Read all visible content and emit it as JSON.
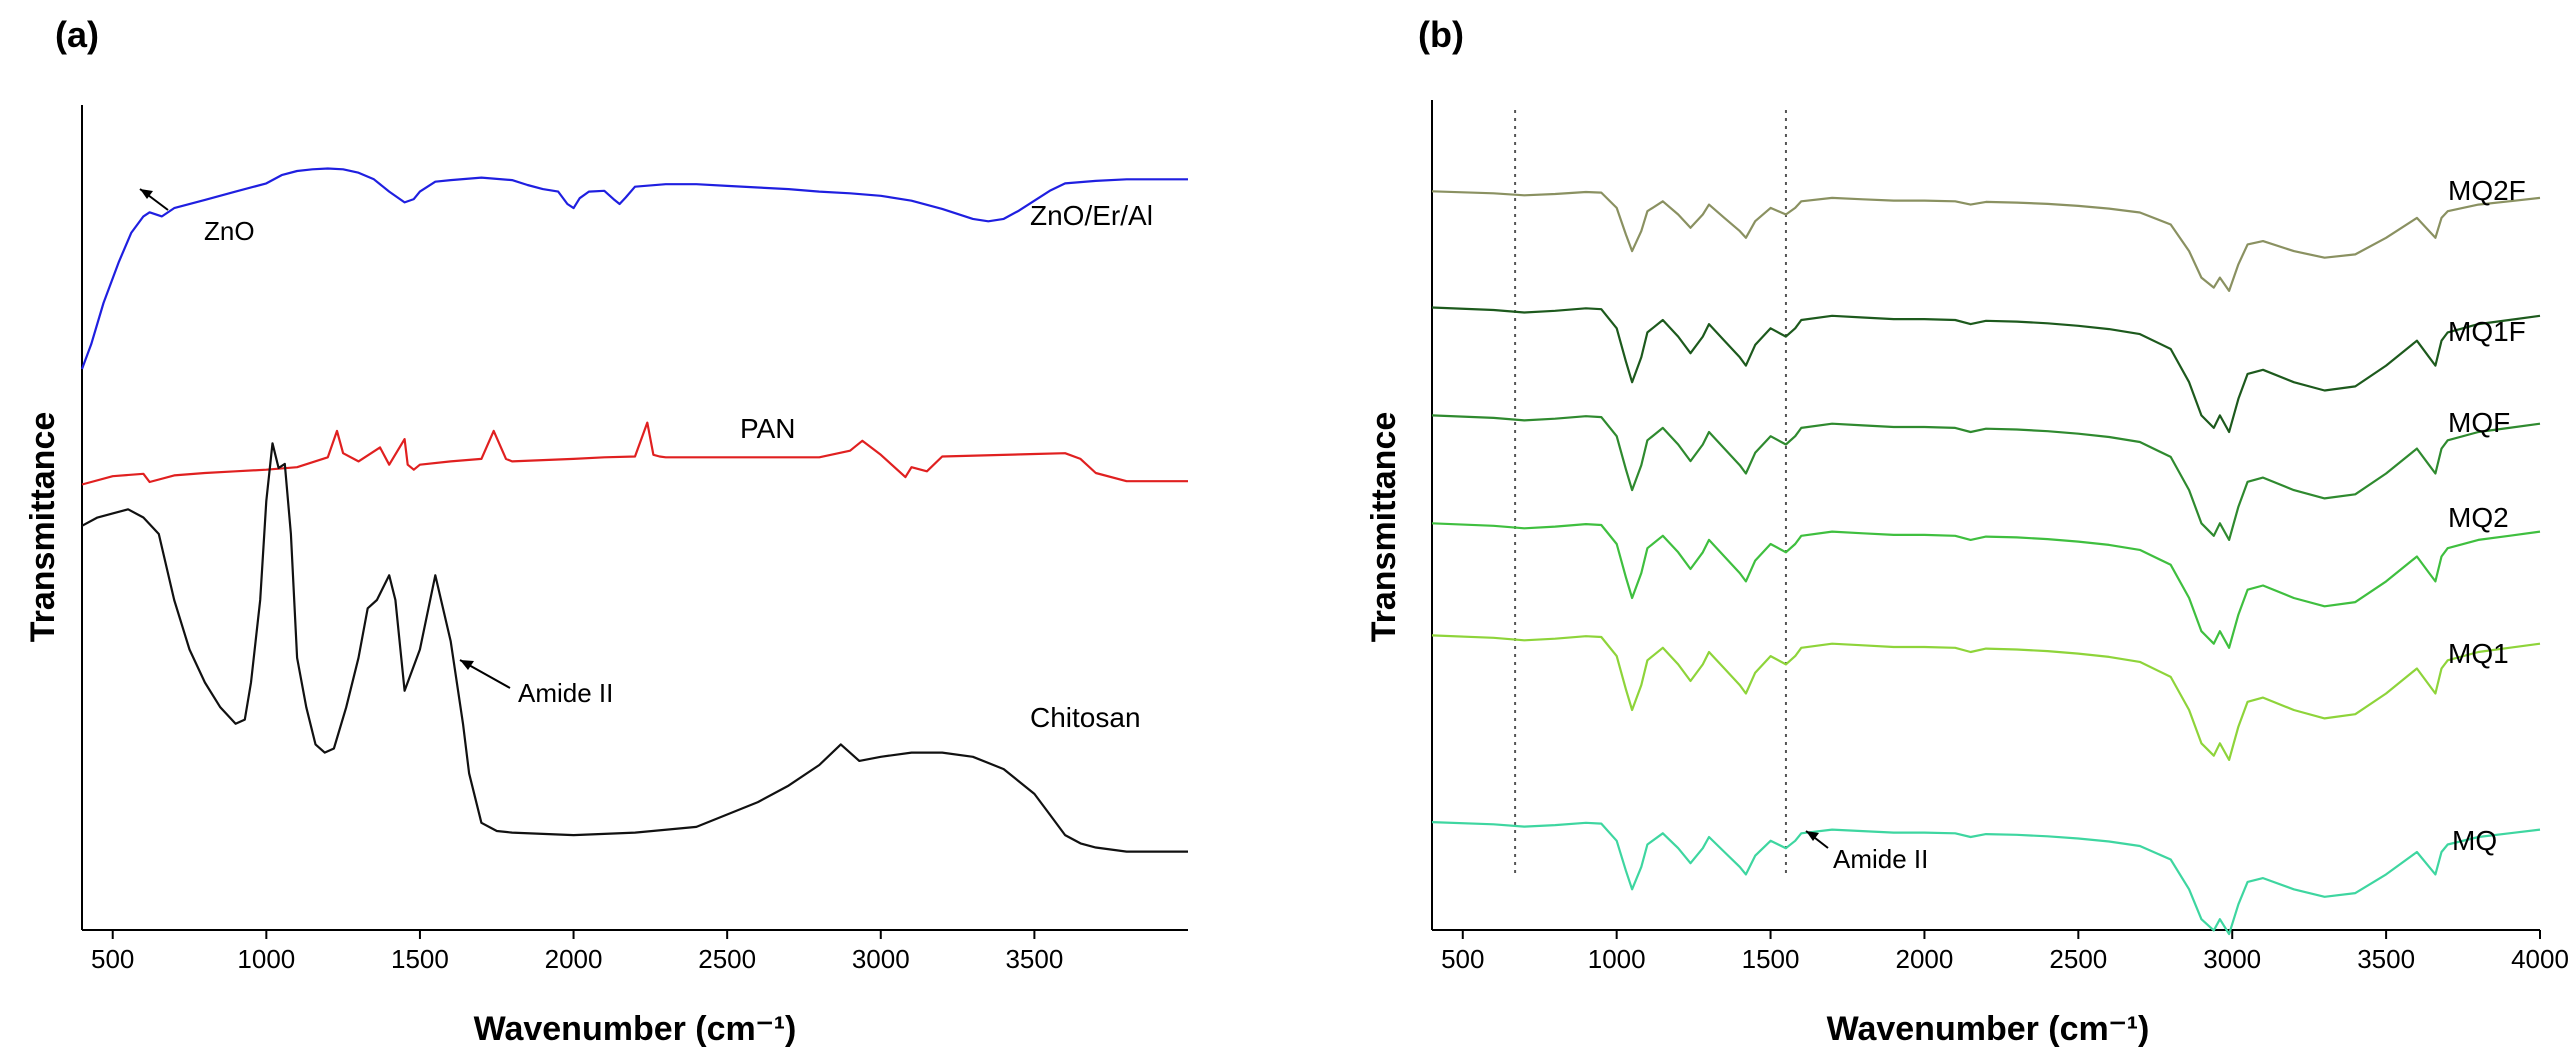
{
  "chart_data": [
    {
      "id": "a",
      "type": "line",
      "panel_label": "(a)",
      "xlabel": "Wavenumber (cm⁻¹)",
      "ylabel": "Transmittance",
      "xlim": [
        400,
        4000
      ],
      "xticks": [
        500,
        1000,
        1500,
        2000,
        2500,
        3000,
        3500
      ],
      "ylim": [
        0,
        100
      ],
      "yticks_visible": false,
      "series": [
        {
          "name": "ZnO/Er/Al",
          "color": "#1f1fe0",
          "x": [
            400,
            430,
            470,
            520,
            560,
            600,
            620,
            660,
            700,
            800,
            900,
            1000,
            1050,
            1100,
            1150,
            1200,
            1250,
            1300,
            1350,
            1400,
            1450,
            1480,
            1500,
            1550,
            1600,
            1700,
            1800,
            1850,
            1900,
            1950,
            1980,
            2000,
            2020,
            2050,
            2100,
            2130,
            2150,
            2170,
            2200,
            2300,
            2400,
            2500,
            2600,
            2700,
            2800,
            2900,
            3000,
            3100,
            3200,
            3300,
            3350,
            3400,
            3450,
            3500,
            3550,
            3600,
            3700,
            3800,
            3900,
            4000
          ],
          "y": [
            68,
            71,
            76,
            81,
            84.5,
            86.5,
            87,
            86.5,
            87.5,
            88.5,
            89.5,
            90.5,
            91.5,
            92,
            92.2,
            92.3,
            92.2,
            91.8,
            91,
            89.5,
            88.2,
            88.6,
            89.5,
            90.7,
            90.9,
            91.2,
            90.9,
            90.3,
            89.8,
            89.5,
            88,
            87.5,
            88.7,
            89.5,
            89.6,
            88.6,
            88,
            88.8,
            90.1,
            90.4,
            90.4,
            90.2,
            90,
            89.8,
            89.5,
            89.3,
            89,
            88.4,
            87.4,
            86.2,
            85.9,
            86.2,
            87.2,
            88.4,
            89.6,
            90.5,
            90.8,
            91,
            91,
            91
          ]
        },
        {
          "name": "PAN",
          "color": "#e02020",
          "x": [
            400,
            500,
            600,
            620,
            700,
            800,
            900,
            1000,
            1100,
            1200,
            1230,
            1250,
            1300,
            1370,
            1400,
            1450,
            1460,
            1480,
            1500,
            1600,
            1700,
            1740,
            1780,
            1800,
            2000,
            2100,
            2200,
            2240,
            2260,
            2280,
            2300,
            2500,
            2700,
            2800,
            2900,
            2940,
            3000,
            3080,
            3100,
            3150,
            3200,
            3500,
            3600,
            3650,
            3700,
            3800,
            4000
          ],
          "y": [
            54,
            55,
            55.3,
            54.3,
            55.1,
            55.4,
            55.6,
            55.8,
            56.1,
            57.3,
            60.5,
            57.8,
            56.8,
            58.5,
            56.4,
            59.5,
            56.4,
            55.8,
            56.4,
            56.8,
            57.1,
            60.5,
            57.1,
            56.8,
            57.1,
            57.3,
            57.4,
            61.5,
            57.6,
            57.4,
            57.3,
            57.3,
            57.3,
            57.3,
            58.1,
            59.3,
            57.6,
            54.9,
            56.1,
            55.6,
            57.4,
            57.7,
            57.8,
            57.1,
            55.4,
            54.4,
            54.4
          ]
        },
        {
          "name": "Chitosan",
          "color": "#111111",
          "x": [
            400,
            450,
            500,
            550,
            600,
            650,
            700,
            750,
            800,
            850,
            900,
            930,
            950,
            980,
            1000,
            1020,
            1040,
            1060,
            1080,
            1100,
            1130,
            1160,
            1190,
            1220,
            1260,
            1300,
            1330,
            1360,
            1400,
            1420,
            1450,
            1500,
            1550,
            1600,
            1640,
            1660,
            1700,
            1750,
            1800,
            2000,
            2200,
            2400,
            2600,
            2700,
            2800,
            2870,
            2930,
            3000,
            3100,
            3200,
            3300,
            3400,
            3500,
            3550,
            3600,
            3650,
            3700,
            3800,
            3900,
            4000
          ],
          "y": [
            49,
            50,
            50.5,
            51,
            50,
            48,
            40,
            34,
            30,
            27,
            25,
            25.5,
            30,
            40,
            52,
            59,
            56,
            56.5,
            48,
            33,
            27,
            22.5,
            21.5,
            22,
            27,
            33,
            39,
            40,
            43,
            40,
            29,
            34,
            43,
            35,
            25,
            19,
            13,
            12,
            11.8,
            11.5,
            11.8,
            12.5,
            15.5,
            17.5,
            20,
            22.5,
            20.5,
            21,
            21.5,
            21.5,
            21,
            19.5,
            16.5,
            14,
            11.5,
            10.5,
            10,
            9.5,
            9.5,
            9.5
          ]
        }
      ],
      "annotations": [
        {
          "text": "ZnO",
          "x": 610,
          "y": 86.5
        },
        {
          "text": "Amide II",
          "x": 1545,
          "y": 43
        }
      ]
    },
    {
      "id": "b",
      "type": "line",
      "panel_label": "(b)",
      "xlabel": "Wavenumber (cm⁻¹)",
      "ylabel": "Transmittance",
      "xlim": [
        400,
        4000
      ],
      "xticks": [
        500,
        1000,
        1500,
        2000,
        2500,
        3000,
        3500,
        4000
      ],
      "ylim": [
        0,
        100
      ],
      "yticks_visible": false,
      "reference_lines_x": [
        670,
        1550
      ],
      "annotations": [
        {
          "text": "Amide II",
          "x": 1560,
          "y": 9
        }
      ],
      "shape": {
        "x": [
          400,
          600,
          700,
          800,
          900,
          950,
          1000,
          1030,
          1050,
          1080,
          1100,
          1150,
          1200,
          1240,
          1280,
          1300,
          1350,
          1400,
          1420,
          1450,
          1500,
          1550,
          1580,
          1600,
          1700,
          1800,
          1900,
          2000,
          2100,
          2150,
          2200,
          2300,
          2400,
          2500,
          2600,
          2700,
          2800,
          2860,
          2900,
          2940,
          2960,
          2990,
          3020,
          3050,
          3100,
          3200,
          3300,
          3400,
          3500,
          3600,
          3640,
          3660,
          3680,
          3700,
          3800,
          3900,
          4000
        ],
        "depth": [
          0,
          0.3,
          0.6,
          0.4,
          0.1,
          0.2,
          2.5,
          6.5,
          9,
          6,
          3,
          1.5,
          3.5,
          5.5,
          3.5,
          2,
          4,
          6,
          7,
          4.5,
          2.5,
          3.5,
          2.5,
          1.5,
          1,
          1.2,
          1.4,
          1.4,
          1.5,
          2,
          1.6,
          1.7,
          1.9,
          2.2,
          2.6,
          3.2,
          5,
          9,
          13,
          14.5,
          13,
          15,
          11,
          8,
          7.5,
          9,
          10,
          9.5,
          7,
          4,
          6,
          7,
          4,
          3,
          2,
          1.5,
          1
        ]
      },
      "series": [
        {
          "name": "MQ2F",
          "color": "#8a9161",
          "baseline": 89,
          "scale": 0.8
        },
        {
          "name": "MQ1F",
          "color": "#1d5a1d",
          "baseline": 75,
          "scale": 1.0
        },
        {
          "name": "MQF",
          "color": "#2f8a2f",
          "baseline": 62,
          "scale": 1.0
        },
        {
          "name": "MQ2",
          "color": "#3fbf3f",
          "baseline": 49,
          "scale": 1.0
        },
        {
          "name": "MQ1",
          "color": "#8ed43a",
          "baseline": 35.5,
          "scale": 1.0
        },
        {
          "name": "MQ",
          "color": "#3ed6a0",
          "baseline": 13,
          "scale": 0.9
        }
      ]
    }
  ]
}
